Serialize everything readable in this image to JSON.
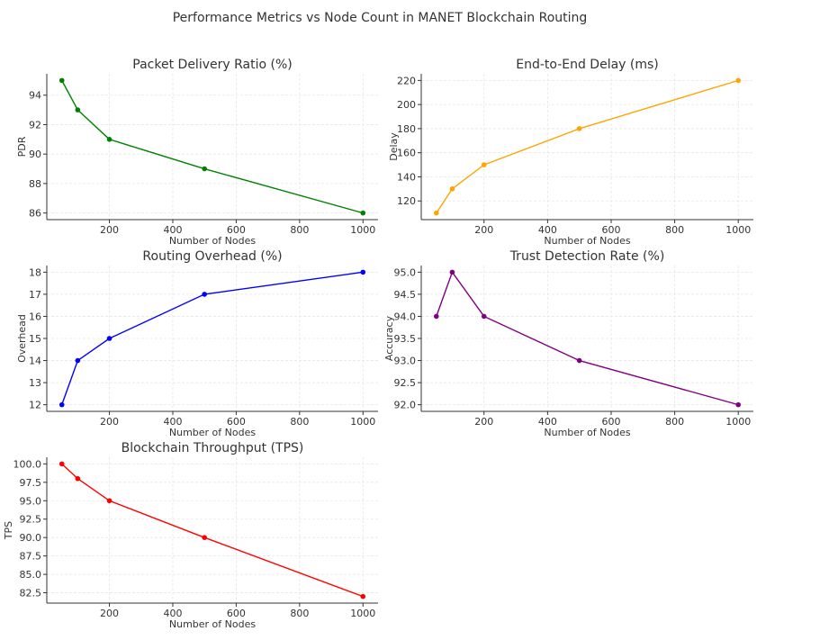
{
  "chart_data": {
    "suptitle": "Performance Metrics vs Node Count in MANET Blockchain Routing",
    "type": "line",
    "subplots": [
      {
        "title": "Packet Delivery Ratio (%)",
        "xlabel": "Number of Nodes",
        "ylabel": "PDR",
        "color": "#008000",
        "x": [
          50,
          100,
          200,
          500,
          1000
        ],
        "y": [
          95,
          93,
          91,
          89,
          86
        ],
        "xlim": [
          2.5,
          1047.5
        ],
        "ylim": [
          85.55,
          95.45
        ],
        "xticks": [
          200,
          400,
          600,
          800,
          1000
        ],
        "yticks": [
          86,
          88,
          90,
          92,
          94
        ],
        "ytick_labels": [
          "86",
          "88",
          "90",
          "92",
          "94"
        ],
        "grid": true
      },
      {
        "title": "End-to-End Delay (ms)",
        "xlabel": "Number of Nodes",
        "ylabel": "Delay",
        "color": "#ffa500",
        "x": [
          50,
          100,
          200,
          500,
          1000
        ],
        "y": [
          110,
          130,
          150,
          180,
          220
        ],
        "xlim": [
          2.5,
          1047.5
        ],
        "ylim": [
          104.5,
          225.5
        ],
        "xticks": [
          200,
          400,
          600,
          800,
          1000
        ],
        "yticks": [
          120,
          140,
          160,
          180,
          200,
          220
        ],
        "ytick_labels": [
          "120",
          "140",
          "160",
          "180",
          "200",
          "220"
        ],
        "grid": true
      },
      {
        "title": "Routing Overhead (%)",
        "xlabel": "Number of Nodes",
        "ylabel": "Overhead",
        "color": "#0000ff",
        "x": [
          50,
          100,
          200,
          500,
          1000
        ],
        "y": [
          12,
          14,
          15,
          17,
          18
        ],
        "xlim": [
          2.5,
          1047.5
        ],
        "ylim": [
          11.7,
          18.3
        ],
        "xticks": [
          200,
          400,
          600,
          800,
          1000
        ],
        "yticks": [
          12,
          13,
          14,
          15,
          16,
          17,
          18
        ],
        "ytick_labels": [
          "12",
          "13",
          "14",
          "15",
          "16",
          "17",
          "18"
        ],
        "grid": true
      },
      {
        "title": "Trust Detection Rate (%)",
        "xlabel": "Number of Nodes",
        "ylabel": "Accuracy",
        "color": "#800080",
        "x": [
          50,
          100,
          200,
          500,
          1000
        ],
        "y": [
          94,
          95,
          94,
          93,
          92
        ],
        "xlim": [
          2.5,
          1047.5
        ],
        "ylim": [
          91.85,
          95.15
        ],
        "xticks": [
          200,
          400,
          600,
          800,
          1000
        ],
        "yticks": [
          92,
          92.5,
          93,
          93.5,
          94,
          94.5,
          95
        ],
        "ytick_labels": [
          "92.0",
          "92.5",
          "93.0",
          "93.5",
          "94.0",
          "94.5",
          "95.0"
        ],
        "grid": true
      },
      {
        "title": "Blockchain Throughput (TPS)",
        "xlabel": "Number of Nodes",
        "ylabel": "TPS",
        "color": "#ff0000",
        "x": [
          50,
          100,
          200,
          500,
          1000
        ],
        "y": [
          100,
          98,
          95,
          90,
          82
        ],
        "xlim": [
          2.5,
          1047.5
        ],
        "ylim": [
          81.1,
          100.9
        ],
        "xticks": [
          200,
          400,
          600,
          800,
          1000
        ],
        "yticks": [
          82.5,
          85,
          87.5,
          90,
          92.5,
          95,
          97.5,
          100
        ],
        "ytick_labels": [
          "82.5",
          "85.0",
          "87.5",
          "90.0",
          "92.5",
          "95.0",
          "97.5",
          "100.0"
        ],
        "grid": true
      }
    ]
  }
}
